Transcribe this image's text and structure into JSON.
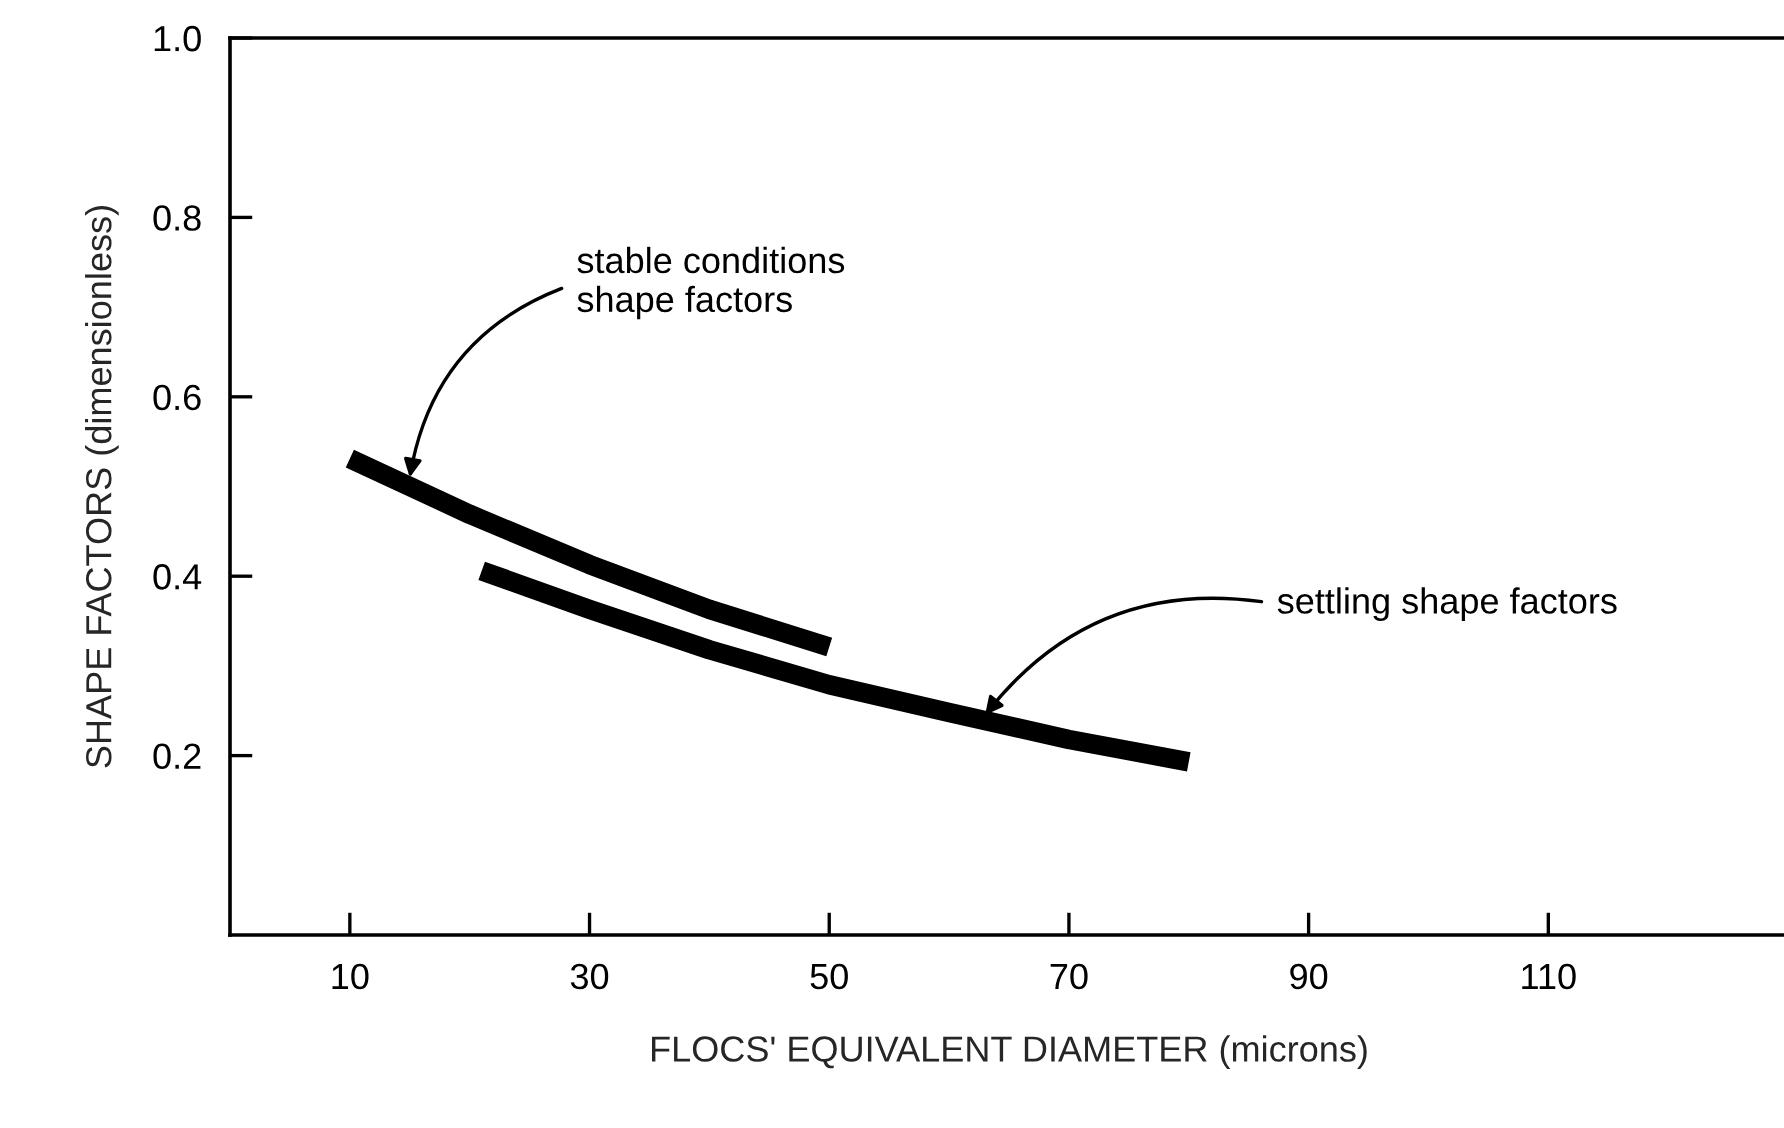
{
  "chart_data": {
    "type": "line",
    "xlabel": "FLOCS' EQUIVALENT DIAMETER (microns)",
    "ylabel": "SHAPE FACTORS (dimensionless)",
    "xlim": [
      0,
      130
    ],
    "xticks": [
      10,
      30,
      50,
      70,
      90,
      110
    ],
    "ylim": [
      0,
      1.0
    ],
    "yticks": [
      0.2,
      0.4,
      0.6,
      0.8,
      {
        "value": 1.0,
        "label": "1.0"
      }
    ],
    "grid": false,
    "marker": "none",
    "line_style": "solid",
    "series": [
      {
        "color": "#000000",
        "x": [
          10,
          20,
          30,
          40,
          50
        ],
        "values": [
          0.531,
          0.469,
          0.413,
          0.363,
          0.321
        ]
      },
      {
        "color": "#000000",
        "x": [
          21,
          30,
          40,
          50,
          60,
          70,
          80
        ],
        "values": [
          0.406,
          0.363,
          0.318,
          0.279,
          0.248,
          0.218,
          0.193
        ]
      }
    ],
    "annotations": [
      {
        "text": "stable conditions\nshape factors",
        "x": 15,
        "y": 0.51
      },
      {
        "text": "settling shape factors",
        "x": 63,
        "y": 0.245
      }
    ]
  }
}
